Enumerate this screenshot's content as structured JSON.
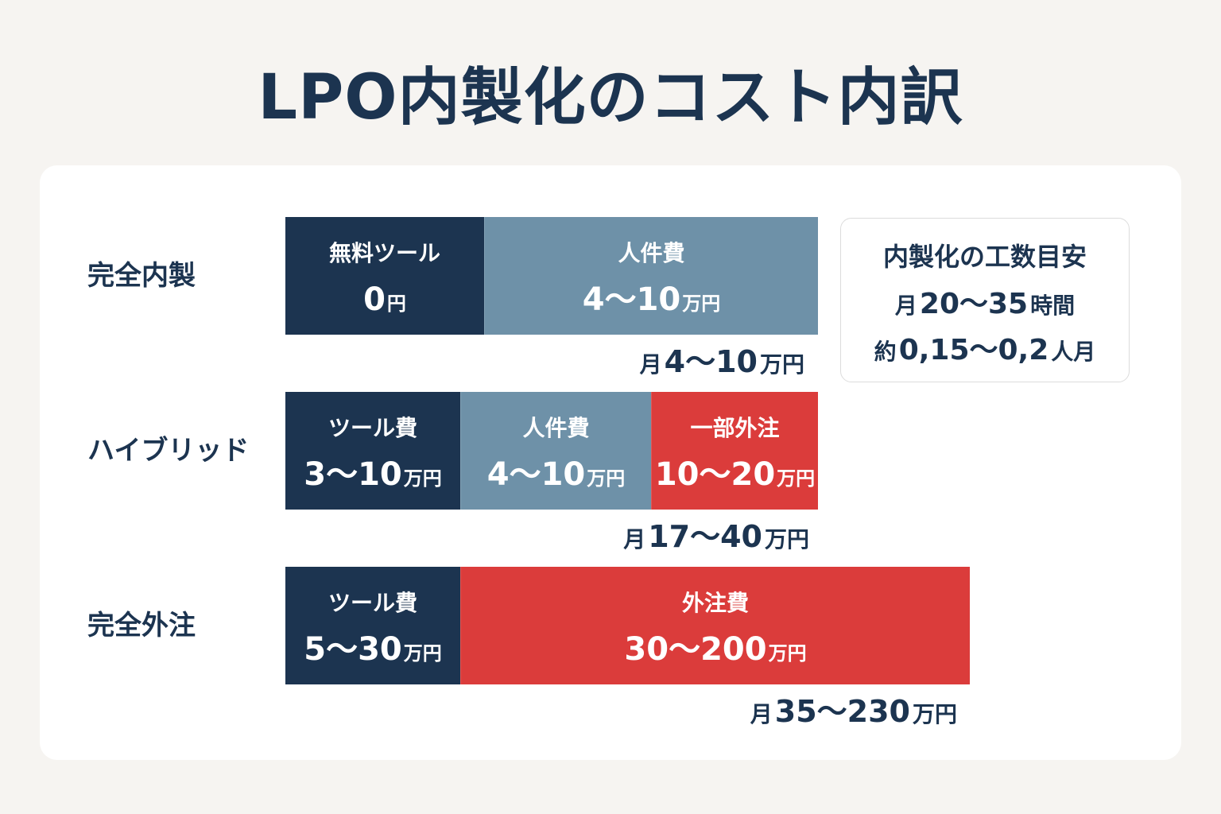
{
  "title": "LPO内製化のコスト内訳",
  "colors": {
    "tool": "#1c3450",
    "labor": "#6e91a8",
    "outsource": "#db3c3b",
    "text": "#1c3450",
    "background": "#f6f4f1"
  },
  "chart_data": {
    "type": "bar",
    "orientation": "horizontal",
    "stacked": true,
    "title": "LPO内製化のコスト内訳",
    "xlabel": "",
    "ylabel": "",
    "value_unit": "万円",
    "rows": [
      {
        "label": "完全内製",
        "segments": [
          {
            "name": "無料ツール",
            "value_text": "0",
            "unit": "円",
            "min": 0,
            "max": 0,
            "color_key": "tool"
          },
          {
            "name": "人件費",
            "value_text": "4〜10",
            "unit": "万円",
            "min": 4,
            "max": 10,
            "color_key": "labor"
          }
        ],
        "total": {
          "prefix": "月",
          "value_text": "4〜10",
          "unit": "万円",
          "min": 4,
          "max": 10
        }
      },
      {
        "label": "ハイブリッド",
        "segments": [
          {
            "name": "ツール費",
            "value_text": "3〜10",
            "unit": "万円",
            "min": 3,
            "max": 10,
            "color_key": "tool"
          },
          {
            "name": "人件費",
            "value_text": "4〜10",
            "unit": "万円",
            "min": 4,
            "max": 10,
            "color_key": "labor"
          },
          {
            "name": "一部外注",
            "value_text": "10〜20",
            "unit": "万円",
            "min": 10,
            "max": 20,
            "color_key": "outsource"
          }
        ],
        "total": {
          "prefix": "月",
          "value_text": "17〜40",
          "unit": "万円",
          "min": 17,
          "max": 40
        }
      },
      {
        "label": "完全外注",
        "segments": [
          {
            "name": "ツール費",
            "value_text": "5〜30",
            "unit": "万円",
            "min": 5,
            "max": 30,
            "color_key": "tool"
          },
          {
            "name": "外注費",
            "value_text": "30〜200",
            "unit": "万円",
            "min": 30,
            "max": 200,
            "color_key": "outsource"
          }
        ],
        "total": {
          "prefix": "月",
          "value_text": "35〜230",
          "unit": "万円",
          "min": 35,
          "max": 230
        }
      }
    ]
  },
  "info": {
    "title": "内製化の工数目安",
    "line1": {
      "prefix": "月",
      "value_text": "20〜35",
      "unit": "時間"
    },
    "line2": {
      "prefix": "約",
      "value_text": "0,15〜0,2",
      "unit": "人月"
    }
  }
}
